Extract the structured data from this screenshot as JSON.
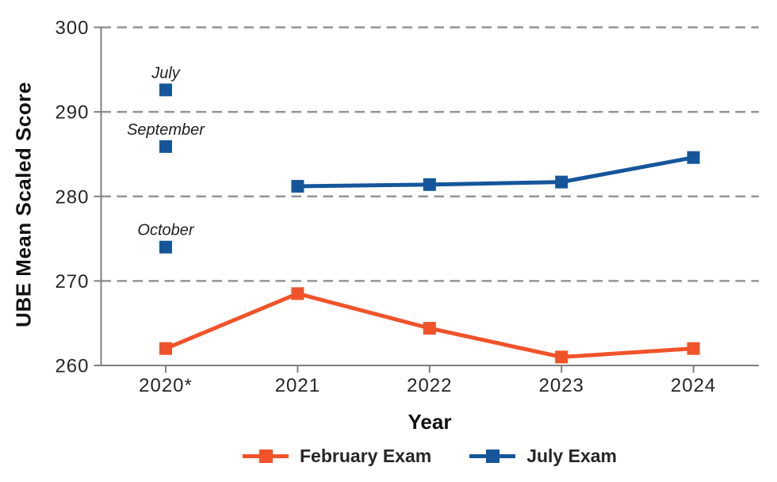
{
  "chart_data": {
    "type": "line",
    "title": "",
    "xlabel": "Year",
    "ylabel": "UBE Mean Scaled Score",
    "categories": [
      "2020*",
      "2021",
      "2022",
      "2023",
      "2024"
    ],
    "ylim": [
      260,
      300
    ],
    "yticks": [
      260,
      270,
      280,
      290,
      300
    ],
    "grid": "horizontal-dashed",
    "legend_position": "bottom",
    "series": [
      {
        "name": "February Exam",
        "color": "#F0532A",
        "values": [
          262.0,
          268.5,
          264.4,
          261.0,
          262.0
        ]
      },
      {
        "name": "July Exam",
        "color": "#15569B",
        "values": [
          null,
          281.2,
          281.4,
          281.7,
          284.6
        ]
      }
    ],
    "annotations_2020": {
      "category": "2020*",
      "series": "July Exam",
      "points": [
        {
          "label": "July",
          "value": 292.6
        },
        {
          "label": "September",
          "value": 285.9
        },
        {
          "label": "October",
          "value": 274.0
        }
      ]
    },
    "colors": {
      "gridline": "#949494",
      "axis": "#7f7f7f",
      "tick_text": "#262626"
    }
  }
}
